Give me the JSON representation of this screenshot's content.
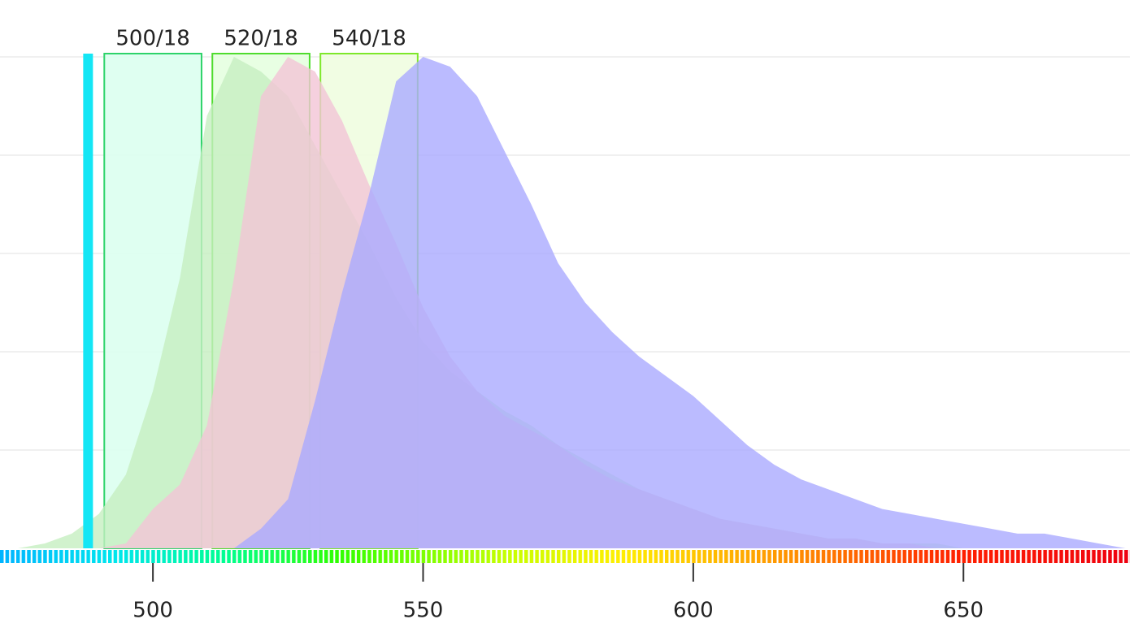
{
  "chart_data": {
    "type": "spectra",
    "x": [
      475,
      480,
      485,
      490,
      495,
      500,
      505,
      510,
      515,
      520,
      525,
      530,
      535,
      540,
      545,
      550,
      555,
      560,
      565,
      570,
      575,
      580,
      585,
      590,
      595,
      600,
      605,
      610,
      615,
      620,
      625,
      630,
      635,
      640,
      645,
      650,
      655,
      660,
      665,
      670,
      675,
      680
    ],
    "series": [
      {
        "color": "#c6efc0",
        "values": [
          0,
          1,
          3,
          7,
          15,
          32,
          55,
          88,
          100,
          97,
          92,
          82,
          72,
          62,
          51,
          42,
          36,
          32,
          28,
          25,
          21,
          18,
          15,
          12,
          10,
          8,
          6,
          5,
          4,
          3,
          2,
          2,
          1,
          1,
          1,
          0,
          0,
          0,
          0,
          0,
          0,
          0
        ]
      },
      {
        "color": "#f2c4d6",
        "values": [
          0,
          0,
          0,
          0,
          1,
          8,
          13,
          25,
          55,
          92,
          100,
          97,
          87,
          74,
          62,
          49,
          39,
          32,
          27,
          24,
          21,
          17,
          14,
          12,
          10,
          8,
          6,
          5,
          4,
          3,
          2,
          2,
          1,
          1,
          0,
          0,
          0,
          0,
          0,
          0,
          0,
          0
        ]
      },
      {
        "color": "#aaaaff",
        "values": [
          0,
          0,
          0,
          0,
          0,
          0,
          0,
          0,
          0,
          4,
          10,
          30,
          52,
          72,
          95,
          100,
          98,
          92,
          81,
          70,
          58,
          50,
          44,
          39,
          35,
          31,
          26,
          21,
          17,
          14,
          12,
          10,
          8,
          7,
          6,
          5,
          4,
          3,
          3,
          2,
          1,
          0
        ]
      }
    ],
    "filters": [
      {
        "name": "500/18",
        "center": 500,
        "width": 18,
        "color": "#2ed36a",
        "fill": "#dcfff0"
      },
      {
        "name": "520/18",
        "center": 520,
        "width": 18,
        "color": "#4fdc2e",
        "fill": "#e6ffe0"
      },
      {
        "name": "540/18",
        "center": 540,
        "width": 18,
        "color": "#7ee82a",
        "fill": "#effde0"
      }
    ],
    "laser": {
      "x": 488,
      "color": "#14e6f5"
    },
    "xlim": [
      471.7,
      680.8
    ],
    "xticks": [
      500,
      550,
      600,
      650
    ],
    "ylim": [
      0,
      100
    ],
    "yticks": [
      20,
      40,
      60,
      80,
      100
    ],
    "grid": true
  }
}
